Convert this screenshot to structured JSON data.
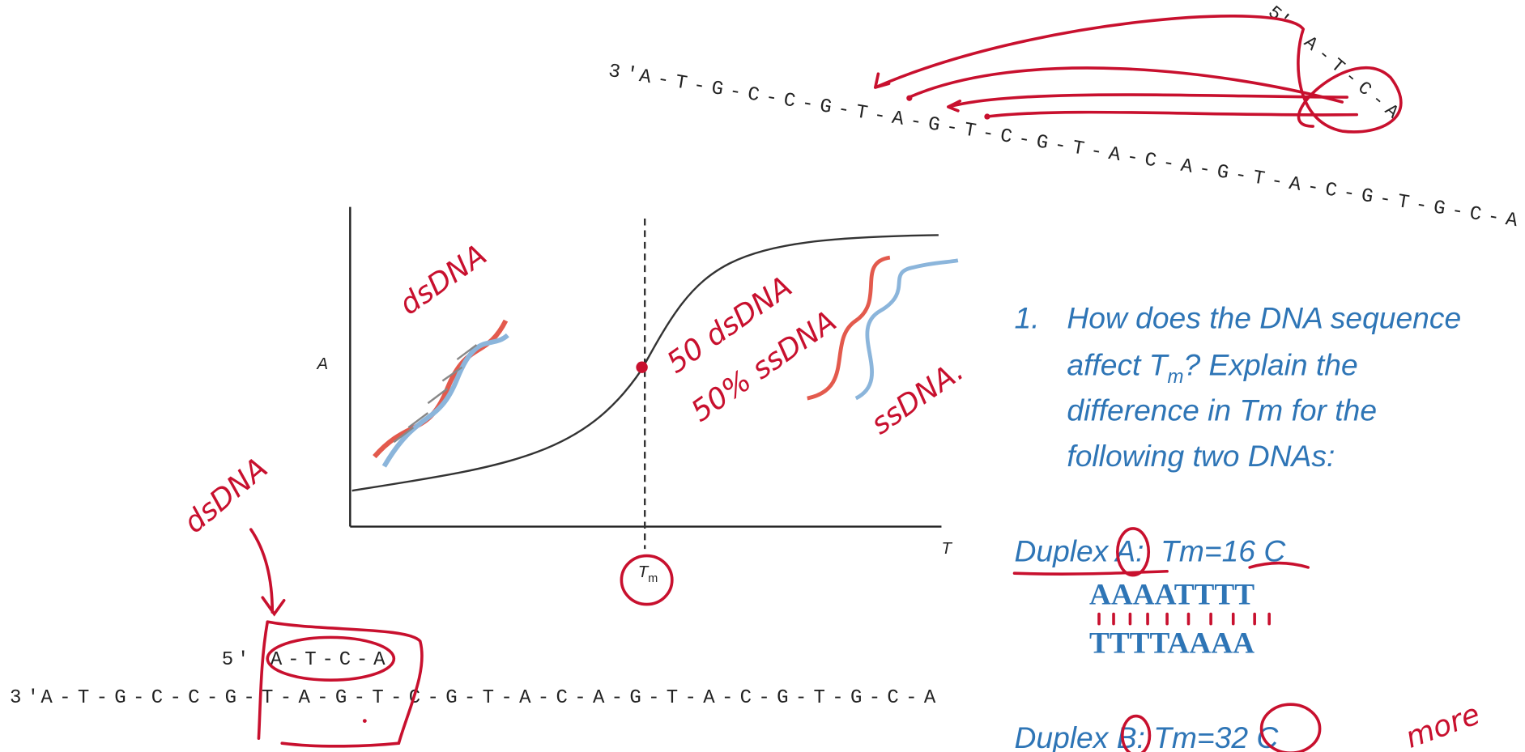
{
  "top_strand": {
    "prime": "3′",
    "sequence": "A-T-G-C-C-G-T-A-G-T-C-G-T-A-C-A-G-T-A-C-G-T-G-C-A"
  },
  "top_primer": {
    "prime": "5′",
    "sequence": "A-T-C-A"
  },
  "graph": {
    "y_label": "A",
    "x_label": "T",
    "tm_label": "T",
    "tm_subscript": "m"
  },
  "question": {
    "number": "1.",
    "line_1": "How does the DNA sequence",
    "line_2_before": "affect T",
    "line_2_subscript": "m",
    "line_2_after": "? Explain the",
    "line_3": "difference in Tm for the",
    "line_4": "following two DNAs:"
  },
  "duplex_a": {
    "label": "Duplex A:  Tm=16 C",
    "strand_1": "AAAATTTT",
    "strand_2": "TTTTAAAA"
  },
  "duplex_b": {
    "label": "Duplex B: Tm=32 C"
  },
  "bottom_primer": {
    "prime": "5′",
    "sequence": "A-T-C-A"
  },
  "bottom_strand": {
    "prime": "3′",
    "sequence": "A-T-G-C-C-G-T-A-G-T-C-G-T-A-C-A-G-T-A-C-G-T-G-C-A"
  },
  "handwriting": {
    "ds_graph": "dsDNA",
    "ds_left": "dsDNA",
    "mid_1": "50 dsDNA",
    "mid_2": "50% ssDNA",
    "ss": "ssDNA.",
    "more": "more"
  }
}
